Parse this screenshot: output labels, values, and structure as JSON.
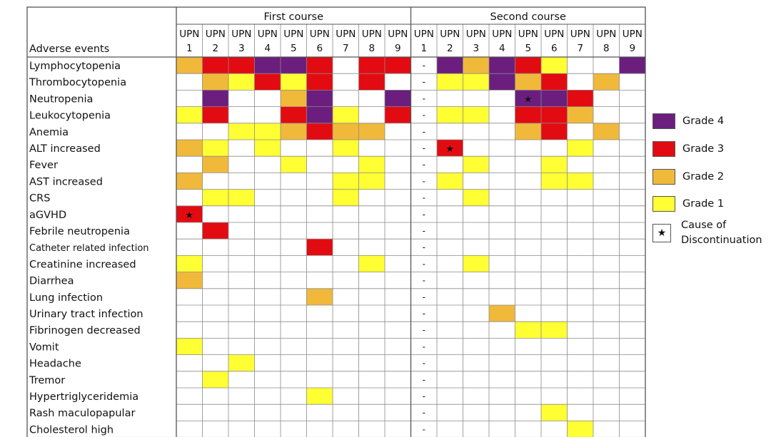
{
  "chart_data": {
    "type": "table",
    "row_header": "Adverse events",
    "courses": [
      {
        "label": "First course",
        "upn_prefix": "UPN",
        "patients": [
          "1",
          "2",
          "3",
          "4",
          "5",
          "6",
          "7",
          "8",
          "9"
        ],
        "dash_column": null
      },
      {
        "label": "Second course",
        "upn_prefix": "UPN",
        "patients": [
          "1",
          "2",
          "3",
          "4",
          "5",
          "6",
          "7",
          "8",
          "9"
        ],
        "dash_column": 0
      }
    ],
    "dash_symbol": "-",
    "events": [
      "Lymphocytopenia",
      "Thrombocytopenia",
      "Neutropenia",
      "Leukocytopenia",
      "Anemia",
      "ALT increased",
      "Fever",
      "AST increased",
      "CRS",
      "aGVHD",
      "Febrile neutropenia",
      "Catheter related infection",
      "Creatinine increased",
      "Diarrhea",
      "Lung infection",
      "Urinary tract infection",
      "Fibrinogen decreased",
      "Vomit",
      "Headache",
      "Tremor",
      "Hypertriglyceridemia",
      "Rash maculopapular",
      "Cholesterol high"
    ],
    "grades_first_course": [
      [
        2,
        3,
        3,
        4,
        4,
        3,
        0,
        3,
        3
      ],
      [
        0,
        2,
        1,
        3,
        1,
        3,
        0,
        3,
        0
      ],
      [
        0,
        4,
        0,
        0,
        2,
        4,
        0,
        0,
        4
      ],
      [
        1,
        3,
        0,
        0,
        3,
        4,
        1,
        0,
        3
      ],
      [
        0,
        0,
        1,
        1,
        2,
        3,
        2,
        2,
        0
      ],
      [
        2,
        1,
        0,
        1,
        0,
        0,
        1,
        0,
        0
      ],
      [
        0,
        2,
        0,
        0,
        1,
        0,
        0,
        1,
        0
      ],
      [
        2,
        0,
        0,
        0,
        0,
        0,
        1,
        1,
        0
      ],
      [
        0,
        1,
        1,
        0,
        0,
        0,
        1,
        0,
        0
      ],
      [
        3,
        0,
        0,
        0,
        0,
        0,
        0,
        0,
        0
      ],
      [
        0,
        3,
        0,
        0,
        0,
        0,
        0,
        0,
        0
      ],
      [
        0,
        0,
        0,
        0,
        0,
        3,
        0,
        0,
        0
      ],
      [
        1,
        0,
        0,
        0,
        0,
        0,
        0,
        1,
        0
      ],
      [
        2,
        0,
        0,
        0,
        0,
        0,
        0,
        0,
        0
      ],
      [
        0,
        0,
        0,
        0,
        0,
        2,
        0,
        0,
        0
      ],
      [
        0,
        0,
        0,
        0,
        0,
        0,
        0,
        0,
        0
      ],
      [
        0,
        0,
        0,
        0,
        0,
        0,
        0,
        0,
        0
      ],
      [
        1,
        0,
        0,
        0,
        0,
        0,
        0,
        0,
        0
      ],
      [
        0,
        0,
        1,
        0,
        0,
        0,
        0,
        0,
        0
      ],
      [
        0,
        1,
        0,
        0,
        0,
        0,
        0,
        0,
        0
      ],
      [
        0,
        0,
        0,
        0,
        0,
        1,
        0,
        0,
        0
      ],
      [
        0,
        0,
        0,
        0,
        0,
        0,
        0,
        0,
        0
      ],
      [
        0,
        0,
        0,
        0,
        0,
        0,
        0,
        0,
        0
      ]
    ],
    "grades_second_course": [
      [
        0,
        4,
        2,
        4,
        3,
        1,
        0,
        0,
        4
      ],
      [
        0,
        1,
        1,
        4,
        2,
        3,
        0,
        2,
        0
      ],
      [
        0,
        0,
        0,
        0,
        4,
        4,
        3,
        0,
        0
      ],
      [
        0,
        1,
        1,
        0,
        3,
        3,
        2,
        0,
        0
      ],
      [
        0,
        0,
        0,
        0,
        2,
        3,
        0,
        2,
        0
      ],
      [
        0,
        3,
        0,
        0,
        0,
        0,
        1,
        0,
        0
      ],
      [
        0,
        0,
        1,
        0,
        0,
        1,
        0,
        0,
        0
      ],
      [
        0,
        1,
        0,
        0,
        0,
        1,
        1,
        0,
        0
      ],
      [
        0,
        0,
        1,
        0,
        0,
        0,
        0,
        0,
        0
      ],
      [
        0,
        0,
        0,
        0,
        0,
        0,
        0,
        0,
        0
      ],
      [
        0,
        0,
        0,
        0,
        0,
        0,
        0,
        0,
        0
      ],
      [
        0,
        0,
        0,
        0,
        0,
        0,
        0,
        0,
        0
      ],
      [
        0,
        0,
        1,
        0,
        0,
        0,
        0,
        0,
        0
      ],
      [
        0,
        0,
        0,
        0,
        0,
        0,
        0,
        0,
        0
      ],
      [
        0,
        0,
        0,
        0,
        0,
        0,
        0,
        0,
        0
      ],
      [
        0,
        0,
        0,
        2,
        0,
        0,
        0,
        0,
        0
      ],
      [
        0,
        0,
        0,
        0,
        1,
        1,
        0,
        0,
        0
      ],
      [
        0,
        0,
        0,
        0,
        0,
        0,
        0,
        0,
        0
      ],
      [
        0,
        0,
        0,
        0,
        0,
        0,
        0,
        0,
        0
      ],
      [
        0,
        0,
        0,
        0,
        0,
        0,
        0,
        0,
        0
      ],
      [
        0,
        0,
        0,
        0,
        0,
        0,
        0,
        0,
        0
      ],
      [
        0,
        0,
        0,
        0,
        0,
        1,
        0,
        0,
        0
      ],
      [
        0,
        0,
        0,
        0,
        0,
        0,
        1,
        0,
        0
      ]
    ],
    "discontinuation": [
      {
        "course": 0,
        "event": "aGVHD",
        "patient": "1"
      },
      {
        "course": 1,
        "event": "ALT increased",
        "patient": "2"
      },
      {
        "course": 1,
        "event": "Neutropenia",
        "patient": "5"
      }
    ],
    "grade_colors": {
      "1": "#ffff33",
      "2": "#f0b93a",
      "3": "#e30b12",
      "4": "#6b1e7e"
    },
    "legend": [
      {
        "grade": 4,
        "label": "Grade 4"
      },
      {
        "grade": 3,
        "label": "Grade 3"
      },
      {
        "grade": 2,
        "label": "Grade 2"
      },
      {
        "grade": 1,
        "label": "Grade 1"
      }
    ],
    "legend_star": {
      "symbol": "★",
      "line1": "Cause of",
      "line2": "Discontinuation"
    }
  }
}
